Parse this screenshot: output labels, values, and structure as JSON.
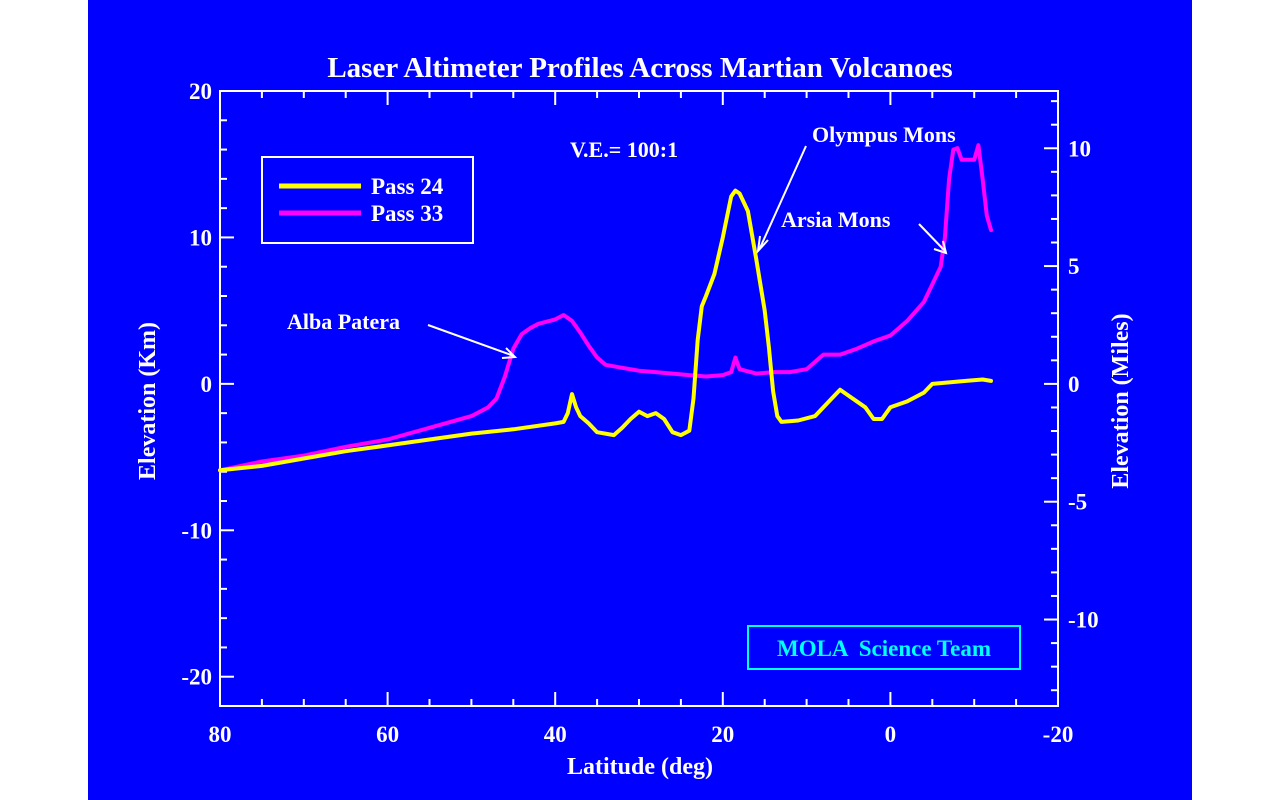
{
  "chart_data": {
    "type": "line",
    "title": "Laser Altimeter Profiles Across Martian Volcanoes",
    "xlabel": "Latitude (deg)",
    "ylabel": "Elevation (Km)",
    "ylabel_right": "Elevation (Miles)",
    "xlim": [
      80,
      -20
    ],
    "ylim": [
      -22,
      20
    ],
    "y2lim": [
      -13.67,
      12.43
    ],
    "x_ticks": [
      80,
      60,
      40,
      20,
      0,
      -20
    ],
    "x_tick_labels": [
      "80",
      "60",
      "40",
      "20",
      "0",
      "-20"
    ],
    "y_ticks": [
      20,
      10,
      0,
      -10,
      -20
    ],
    "y_tick_labels": [
      "20",
      "10",
      "0",
      "-10",
      "-20"
    ],
    "y2_ticks": [
      10,
      5,
      0,
      -5,
      -10
    ],
    "y2_tick_labels": [
      "10",
      "5",
      "0",
      "-5",
      "-10"
    ],
    "legend": {
      "placement": "top-left",
      "entries": [
        {
          "name": "Pass 24",
          "color": "#ffff00"
        },
        {
          "name": "Pass 33",
          "color": "#ff00ff"
        }
      ]
    },
    "series": [
      {
        "name": "Pass 24",
        "color": "#ffff00",
        "points": [
          [
            80,
            -5.9
          ],
          [
            75,
            -5.6
          ],
          [
            70,
            -5.1
          ],
          [
            65,
            -4.6
          ],
          [
            60,
            -4.2
          ],
          [
            55,
            -3.8
          ],
          [
            50,
            -3.4
          ],
          [
            45,
            -3.1
          ],
          [
            40,
            -2.7
          ],
          [
            39,
            -2.6
          ],
          [
            38.5,
            -2.0
          ],
          [
            38,
            -0.7
          ],
          [
            37.5,
            -1.6
          ],
          [
            37,
            -2.2
          ],
          [
            36,
            -2.7
          ],
          [
            35,
            -3.3
          ],
          [
            33,
            -3.5
          ],
          [
            32,
            -3.0
          ],
          [
            31,
            -2.4
          ],
          [
            30,
            -1.9
          ],
          [
            29,
            -2.2
          ],
          [
            28,
            -2.0
          ],
          [
            27,
            -2.4
          ],
          [
            26,
            -3.3
          ],
          [
            25,
            -3.5
          ],
          [
            24,
            -3.2
          ],
          [
            23.5,
            -1.0
          ],
          [
            23,
            3.0
          ],
          [
            22.5,
            5.3
          ],
          [
            22,
            6.0
          ],
          [
            21,
            7.5
          ],
          [
            20,
            10.0
          ],
          [
            19,
            12.8
          ],
          [
            18.5,
            13.2
          ],
          [
            18,
            13.0
          ],
          [
            17,
            11.8
          ],
          [
            16,
            8.5
          ],
          [
            15,
            5.0
          ],
          [
            14.5,
            2.5
          ],
          [
            14,
            -0.5
          ],
          [
            13.5,
            -2.2
          ],
          [
            13,
            -2.6
          ],
          [
            11,
            -2.5
          ],
          [
            9,
            -2.2
          ],
          [
            7,
            -1.0
          ],
          [
            6,
            -0.4
          ],
          [
            5,
            -0.8
          ],
          [
            3,
            -1.6
          ],
          [
            2,
            -2.4
          ],
          [
            1,
            -2.4
          ],
          [
            0,
            -1.6
          ],
          [
            -2,
            -1.2
          ],
          [
            -4,
            -0.6
          ],
          [
            -5,
            0.0
          ],
          [
            -7,
            0.1
          ],
          [
            -9,
            0.2
          ],
          [
            -11,
            0.3
          ],
          [
            -12,
            0.2
          ]
        ]
      },
      {
        "name": "Pass 33",
        "color": "#ff00ff",
        "points": [
          [
            80,
            -5.9
          ],
          [
            75,
            -5.3
          ],
          [
            70,
            -4.9
          ],
          [
            65,
            -4.3
          ],
          [
            60,
            -3.8
          ],
          [
            55,
            -3.0
          ],
          [
            50,
            -2.2
          ],
          [
            48,
            -1.6
          ],
          [
            47,
            -1.0
          ],
          [
            46,
            0.5
          ],
          [
            45,
            2.4
          ],
          [
            44,
            3.4
          ],
          [
            43,
            3.8
          ],
          [
            42,
            4.1
          ],
          [
            40,
            4.4
          ],
          [
            39,
            4.7
          ],
          [
            38,
            4.3
          ],
          [
            37,
            3.5
          ],
          [
            36,
            2.6
          ],
          [
            35,
            1.8
          ],
          [
            34,
            1.3
          ],
          [
            32,
            1.1
          ],
          [
            30,
            0.9
          ],
          [
            28,
            0.8
          ],
          [
            26,
            0.7
          ],
          [
            24,
            0.6
          ],
          [
            22,
            0.5
          ],
          [
            20,
            0.6
          ],
          [
            19,
            0.8
          ],
          [
            18.5,
            1.8
          ],
          [
            18,
            1.0
          ],
          [
            16,
            0.7
          ],
          [
            14,
            0.8
          ],
          [
            12,
            0.8
          ],
          [
            10,
            1.0
          ],
          [
            9,
            1.5
          ],
          [
            8,
            2.0
          ],
          [
            6,
            2.0
          ],
          [
            4,
            2.4
          ],
          [
            2,
            2.9
          ],
          [
            0,
            3.3
          ],
          [
            -2,
            4.3
          ],
          [
            -4,
            5.6
          ],
          [
            -5,
            6.8
          ],
          [
            -6,
            8.0
          ],
          [
            -6.5,
            10.0
          ],
          [
            -7,
            14.0
          ],
          [
            -7.5,
            16.0
          ],
          [
            -8,
            16.1
          ],
          [
            -8.5,
            15.3
          ],
          [
            -10,
            15.3
          ],
          [
            -10.5,
            16.3
          ],
          [
            -11,
            14.0
          ],
          [
            -11.5,
            11.5
          ],
          [
            -12,
            10.5
          ]
        ]
      }
    ],
    "annotations": [
      {
        "text": "V.E.= 100:1"
      },
      {
        "text": "Olympus Mons",
        "x": 17,
        "y": 10.2
      },
      {
        "text": "Arsia Mons",
        "x": -6.2,
        "y": 10.3
      },
      {
        "text": "Alba Patera",
        "x": 44.7,
        "y": 2.9
      },
      {
        "text": "MOLA  Science Team"
      }
    ]
  }
}
